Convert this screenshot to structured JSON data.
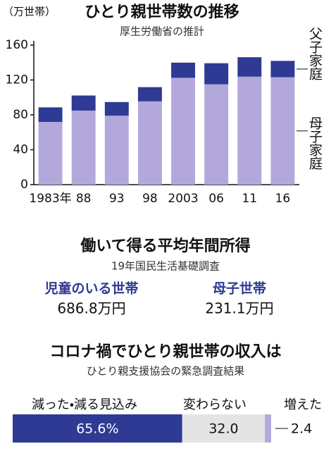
{
  "chart_data": [
    {
      "type": "bar",
      "title": "ひとり親世帯数の推移",
      "subtitle": "厚生労働省の推計",
      "y_label": "（万世帯）",
      "categories": [
        "1983年",
        "88",
        "93",
        "98",
        "2003",
        "06",
        "11",
        "16"
      ],
      "series": [
        {
          "name": "母子家庭",
          "color": "#b3a8dc",
          "values": [
            71.9,
            84.9,
            79.0,
            95.5,
            122.5,
            115.1,
            123.8,
            123.2
          ]
        },
        {
          "name": "父子家庭",
          "color": "#2e3a93",
          "values": [
            16.7,
            17.3,
            15.7,
            16.3,
            17.4,
            24.1,
            22.3,
            18.7
          ]
        }
      ],
      "stacked": true,
      "ylim": [
        0,
        160
      ],
      "yticks": [
        0,
        40,
        80,
        120,
        160
      ],
      "grid": false
    },
    {
      "type": "barh",
      "title": "コロナ禍でひとり親世帯の収入は",
      "subtitle": "ひとり親支援協会の緊急調査結果",
      "series": [
        {
          "name": "減った・減る見込み",
          "color": "#2e3a93",
          "values": [
            65.6
          ],
          "value_labels": [
            "65.6%"
          ]
        },
        {
          "name": "変わらない",
          "color": "#e4e4e4",
          "values": [
            32.0
          ],
          "value_labels": [
            "32.0"
          ]
        },
        {
          "name": "増えた",
          "color": "#b3a8dc",
          "values": [
            2.4
          ],
          "value_labels": [
            "2.4"
          ]
        }
      ],
      "stacked": true,
      "xlim": [
        0,
        100
      ]
    }
  ],
  "income": {
    "title": "働いて得る平均年間所得",
    "subtitle": "19年国民生活基礎調査",
    "items": [
      {
        "label": "児童のいる世帯",
        "value": "686.8万円"
      },
      {
        "label": "母子世帯",
        "value": "231.1万円"
      }
    ]
  }
}
